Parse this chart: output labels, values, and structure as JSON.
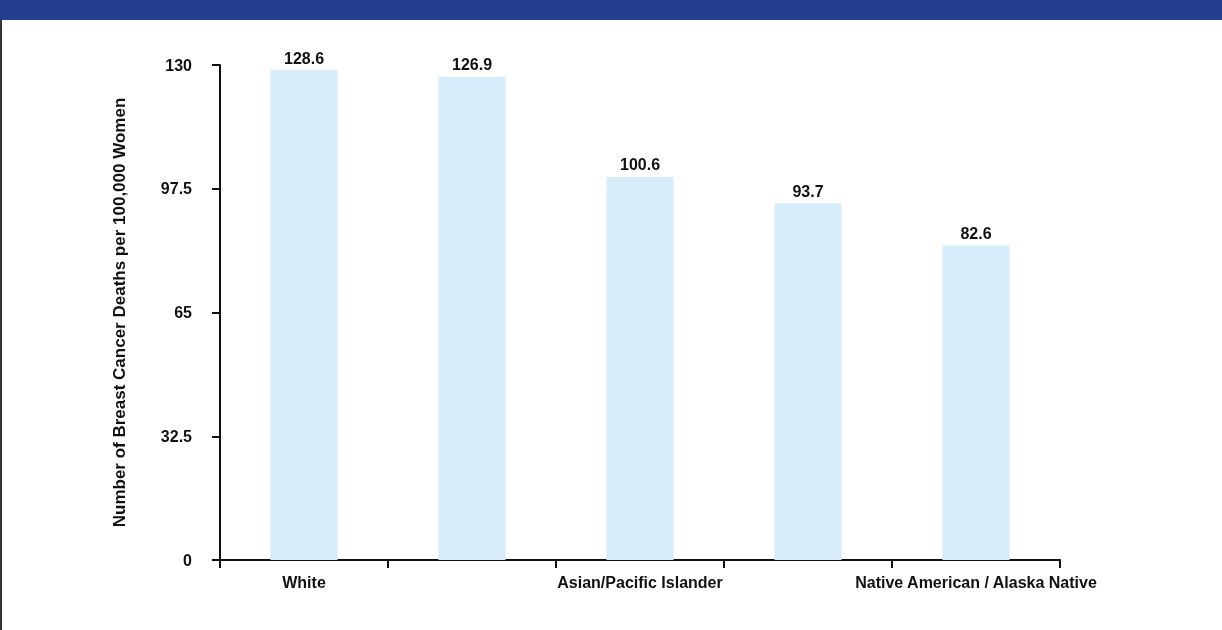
{
  "chart_data": {
    "type": "bar",
    "ylabel": "Number of Breast Cancer Deaths per 100,000 Women",
    "categories": [
      "White",
      null,
      "Asian/Pacific Islander",
      null,
      "Native American / Alaska Native"
    ],
    "values": [
      128.6,
      126.9,
      100.6,
      93.7,
      82.6
    ],
    "color": "#d6ecf9",
    "ylim": [
      0,
      130
    ],
    "yticks": [
      0,
      32.5,
      65,
      97.5,
      130
    ],
    "grid": false,
    "data_labels": true
  }
}
